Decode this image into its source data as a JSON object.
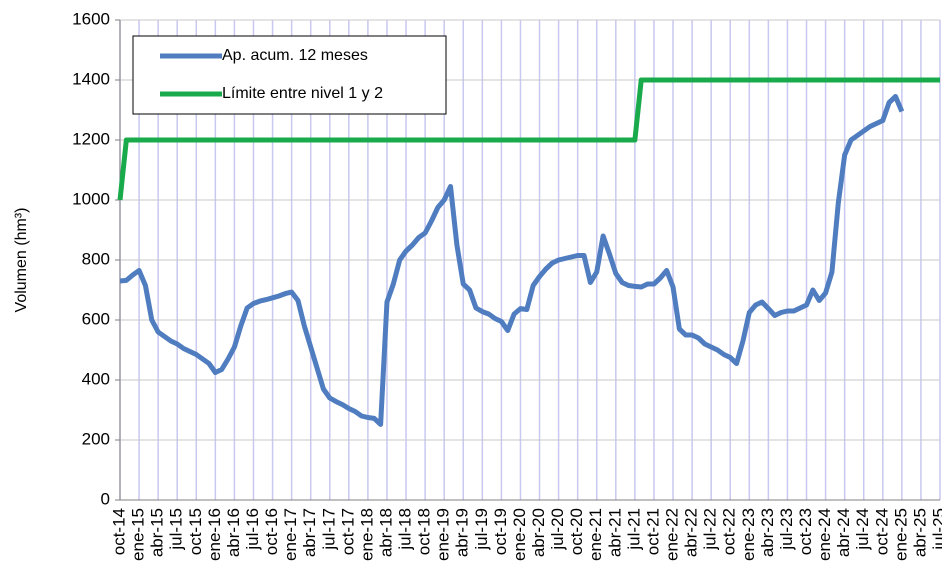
{
  "chart_data": {
    "type": "line",
    "y_label": "Volumen (hm³)",
    "categories": [
      "oct-14",
      null,
      null,
      "ene-15",
      null,
      null,
      "abr-15",
      null,
      null,
      "jul-15",
      null,
      null,
      "oct-15",
      null,
      null,
      "ene-16",
      null,
      null,
      "abr-16",
      null,
      null,
      "jul-16",
      null,
      null,
      "oct-16",
      null,
      null,
      "ene-17",
      null,
      null,
      "abr-17",
      null,
      null,
      "jul-17",
      null,
      null,
      "oct-17",
      null,
      null,
      "ene-18",
      null,
      null,
      "abr-18",
      null,
      null,
      "jul-18",
      null,
      null,
      "oct-18",
      null,
      null,
      "ene-19",
      null,
      null,
      "abr-19",
      null,
      null,
      "jul-19",
      null,
      null,
      "oct-19",
      null,
      null,
      "ene-20",
      null,
      null,
      "abr-20",
      null,
      null,
      "jul-20",
      null,
      null,
      "oct-20",
      null,
      null,
      "ene-21",
      null,
      null,
      "abr-21",
      null,
      null,
      "jul-21",
      null,
      null,
      "oct-21",
      null,
      null,
      "ene-22",
      null,
      null,
      "abr-22",
      null,
      null,
      "jul-22",
      null,
      null,
      "oct-22",
      null,
      null,
      "ene-23",
      null,
      null,
      "abr-23",
      null,
      null,
      "jul-23",
      null,
      null,
      "oct-23",
      null,
      null,
      "ene-24",
      null,
      null,
      "abr-24",
      null,
      null,
      "jul-24",
      null,
      null,
      "oct-24",
      null,
      null,
      "ene-25",
      null,
      null,
      "abr-25",
      null,
      null,
      "jul-25"
    ],
    "series": [
      {
        "name": "Ap. acum. 12 meses",
        "color": "#4f7dc0",
        "values": [
          730,
          732,
          750,
          765,
          715,
          600,
          560,
          545,
          530,
          520,
          505,
          495,
          485,
          470,
          455,
          425,
          435,
          470,
          510,
          580,
          640,
          655,
          663,
          668,
          674,
          680,
          688,
          693,
          665,
          580,
          510,
          440,
          370,
          340,
          328,
          318,
          305,
          295,
          280,
          275,
          272,
          252,
          660,
          720,
          800,
          830,
          850,
          875,
          890,
          930,
          975,
          1000,
          1045,
          850,
          720,
          700,
          640,
          628,
          620,
          605,
          595,
          565,
          620,
          638,
          635,
          715,
          745,
          770,
          790,
          800,
          805,
          810,
          815,
          815,
          725,
          760,
          880,
          820,
          755,
          725,
          715,
          712,
          710,
          720,
          720,
          740,
          765,
          710,
          570,
          550,
          550,
          540,
          520,
          510,
          500,
          485,
          475,
          455,
          530,
          625,
          650,
          660,
          638,
          615,
          625,
          630,
          630,
          640,
          650,
          700,
          665,
          690,
          760,
          990,
          1150,
          1200,
          1215,
          1230,
          1245,
          1255,
          1265,
          1325,
          1345,
          1295,
          null,
          null,
          null,
          null,
          null,
          null
        ]
      },
      {
        "name": "Límite entre nivel 1 y 2",
        "color": "#19ab4b",
        "values": [
          1000,
          1200,
          1200,
          1200,
          1200,
          1200,
          1200,
          1200,
          1200,
          1200,
          1200,
          1200,
          1200,
          1200,
          1200,
          1200,
          1200,
          1200,
          1200,
          1200,
          1200,
          1200,
          1200,
          1200,
          1200,
          1200,
          1200,
          1200,
          1200,
          1200,
          1200,
          1200,
          1200,
          1200,
          1200,
          1200,
          1200,
          1200,
          1200,
          1200,
          1200,
          1200,
          1200,
          1200,
          1200,
          1200,
          1200,
          1200,
          1200,
          1200,
          1200,
          1200,
          1200,
          1200,
          1200,
          1200,
          1200,
          1200,
          1200,
          1200,
          1200,
          1200,
          1200,
          1200,
          1200,
          1200,
          1200,
          1200,
          1200,
          1200,
          1200,
          1200,
          1200,
          1200,
          1200,
          1200,
          1200,
          1200,
          1200,
          1200,
          1200,
          1200,
          1400,
          1400,
          1400,
          1400,
          1400,
          1400,
          1400,
          1400,
          1400,
          1400,
          1400,
          1400,
          1400,
          1400,
          1400,
          1400,
          1400,
          1400,
          1400,
          1400,
          1400,
          1400,
          1400,
          1400,
          1400,
          1400,
          1400,
          1400,
          1400,
          1400,
          1400,
          1400,
          1400,
          1400,
          1400,
          1400,
          1400,
          1400,
          1400,
          1400,
          1400,
          1400,
          1400,
          1400,
          1400,
          1400,
          1400,
          1400
        ]
      }
    ],
    "ylim": [
      0,
      1600
    ],
    "yticks": [
      0,
      200,
      400,
      600,
      800,
      1000,
      1200,
      1400,
      1600
    ],
    "grid": true
  }
}
